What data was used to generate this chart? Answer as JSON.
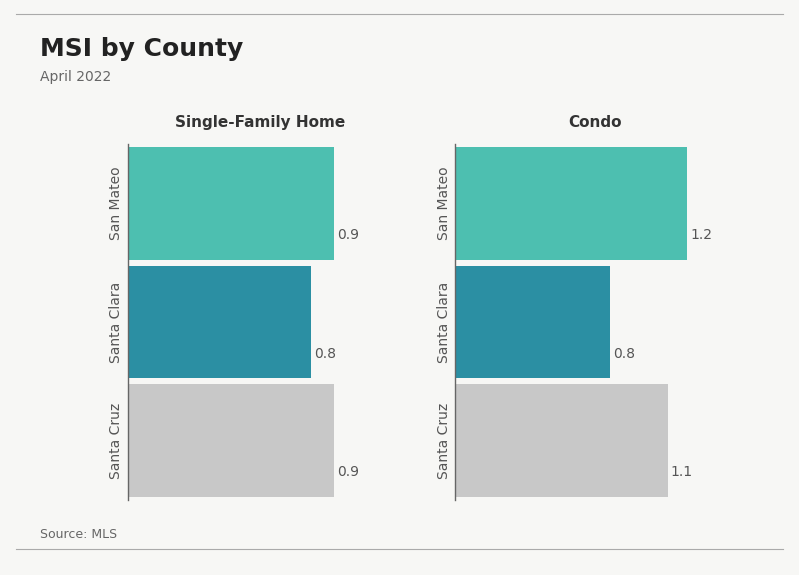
{
  "title": "MSI by County",
  "subtitle": "April 2022",
  "source": "Source: MLS",
  "left_title": "Single-Family Home",
  "right_title": "Condo",
  "categories": [
    "San Mateo",
    "Santa Clara",
    "Santa Cruz"
  ],
  "sfh_values": [
    0.9,
    0.8,
    0.9
  ],
  "condo_values": [
    1.2,
    0.8,
    1.1
  ],
  "colors": [
    "#4dbfb0",
    "#2b8fa3",
    "#c8c8c8"
  ],
  "bar_height": 0.95,
  "background_color": "#f7f7f5",
  "title_fontsize": 18,
  "subtitle_fontsize": 10,
  "label_fontsize": 10,
  "value_fontsize": 10,
  "source_fontsize": 9,
  "axis_title_fontsize": 11,
  "title_color": "#222222",
  "subtitle_color": "#666666",
  "label_color": "#555555",
  "value_color": "#555555",
  "spine_color": "#666666"
}
